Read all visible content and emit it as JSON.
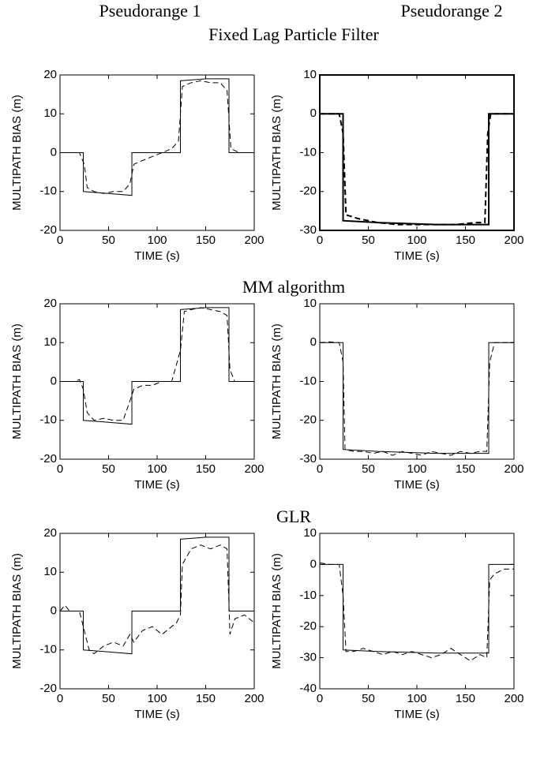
{
  "columns": [
    "Pseudorange 1",
    "Pseudorange 2"
  ],
  "rows": [
    {
      "title": "Fixed Lag Particle Filter"
    },
    {
      "title": "MM algorithm"
    },
    {
      "title": "GLR"
    }
  ],
  "chart_data": [
    {
      "type": "line",
      "xlabel": "TIME (s)",
      "ylabel": "MULTIPATH BIAS (m)",
      "xlim": [
        0,
        200
      ],
      "ylim": [
        -20,
        20
      ],
      "xticks": [
        0,
        50,
        100,
        150,
        200
      ],
      "yticks": [
        -20,
        -10,
        0,
        10,
        20
      ],
      "line_width": 1,
      "series": [
        {
          "color": "#000000",
          "dash": false,
          "x": [
            0,
            24,
            24,
            50,
            74,
            74,
            124,
            124,
            150,
            174,
            174,
            200
          ],
          "values": [
            0,
            0,
            -10,
            -10.5,
            -11,
            0,
            0,
            18.5,
            19,
            19,
            0,
            0
          ]
        },
        {
          "color": "#000000",
          "dash": true,
          "x": [
            0,
            20,
            25,
            28,
            35,
            45,
            55,
            65,
            72,
            76,
            85,
            95,
            105,
            115,
            122,
            126,
            135,
            145,
            155,
            165,
            172,
            176,
            185,
            195,
            200
          ],
          "values": [
            0,
            0,
            -3,
            -9,
            -10,
            -10.5,
            -10,
            -10,
            -8,
            -3,
            -2,
            -1,
            0,
            1,
            3,
            17,
            18,
            18.5,
            18,
            18,
            16,
            1,
            0,
            0,
            0
          ]
        }
      ]
    },
    {
      "type": "line",
      "xlabel": "TIME (s)",
      "ylabel": "MULTIPATH BIAS (m)",
      "xlim": [
        0,
        200
      ],
      "ylim": [
        -30,
        10
      ],
      "xticks": [
        0,
        50,
        100,
        150,
        200
      ],
      "yticks": [
        -30,
        -20,
        -10,
        0,
        10
      ],
      "line_width": 2,
      "series": [
        {
          "color": "#000000",
          "dash": false,
          "x": [
            0,
            24,
            24,
            60,
            120,
            174,
            174,
            200
          ],
          "values": [
            0,
            0,
            -27.5,
            -28,
            -28.5,
            -28.5,
            0,
            0
          ]
        },
        {
          "color": "#000000",
          "dash": true,
          "x": [
            0,
            20,
            24,
            27,
            40,
            60,
            80,
            100,
            120,
            140,
            160,
            170,
            173,
            176,
            200
          ],
          "values": [
            0,
            0,
            -5,
            -26,
            -27,
            -28,
            -28.5,
            -28.5,
            -28.5,
            -28.5,
            -28,
            -28,
            -5,
            0,
            0
          ]
        }
      ]
    },
    {
      "type": "line",
      "xlabel": "TIME (s)",
      "ylabel": "MULTIPATH BIAS (m)",
      "xlim": [
        0,
        200
      ],
      "ylim": [
        -20,
        20
      ],
      "xticks": [
        0,
        50,
        100,
        150,
        200
      ],
      "yticks": [
        -20,
        -10,
        0,
        10,
        20
      ],
      "line_width": 1,
      "series": [
        {
          "color": "#000000",
          "dash": false,
          "x": [
            0,
            24,
            24,
            50,
            74,
            74,
            124,
            124,
            150,
            174,
            174,
            200
          ],
          "values": [
            0,
            0,
            -10,
            -10.5,
            -11,
            0,
            0,
            18.5,
            19,
            19,
            0,
            0
          ]
        },
        {
          "color": "#000000",
          "dash": true,
          "x": [
            0,
            15,
            20,
            24,
            28,
            35,
            45,
            55,
            65,
            72,
            76,
            85,
            95,
            105,
            115,
            124,
            128,
            135,
            145,
            155,
            165,
            172,
            175,
            180,
            190,
            200
          ],
          "values": [
            0,
            0,
            0.5,
            -2,
            -8,
            -10,
            -9.5,
            -10,
            -10,
            -5,
            -2,
            -1,
            -1,
            0,
            0,
            8,
            18,
            18.5,
            19,
            18.5,
            18,
            17,
            3,
            0,
            0,
            0
          ]
        }
      ]
    },
    {
      "type": "line",
      "xlabel": "TIME (s)",
      "ylabel": "MULTIPATH BIAS (m)",
      "xlim": [
        0,
        200
      ],
      "ylim": [
        -30,
        10
      ],
      "xticks": [
        0,
        50,
        100,
        150,
        200
      ],
      "yticks": [
        -30,
        -20,
        -10,
        0,
        10
      ],
      "line_width": 1,
      "series": [
        {
          "color": "#000000",
          "dash": false,
          "x": [
            0,
            24,
            24,
            60,
            120,
            174,
            174,
            200
          ],
          "values": [
            0,
            0,
            -27.5,
            -28,
            -28.5,
            -28.5,
            0,
            0
          ]
        },
        {
          "color": "#000000",
          "dash": true,
          "x": [
            0,
            10,
            20,
            24,
            26,
            35,
            45,
            55,
            65,
            75,
            85,
            95,
            105,
            115,
            125,
            135,
            145,
            155,
            165,
            172,
            175,
            180,
            190,
            200
          ],
          "values": [
            0,
            0.2,
            0,
            -5,
            -27.5,
            -28,
            -28,
            -28.5,
            -28,
            -29,
            -28,
            -28.5,
            -29,
            -28,
            -28.5,
            -29,
            -28,
            -28.5,
            -28,
            -28,
            -5,
            0,
            0,
            0
          ]
        }
      ]
    },
    {
      "type": "line",
      "xlabel": "TIME (s)",
      "ylabel": "MULTIPATH BIAS (m)",
      "xlim": [
        0,
        200
      ],
      "ylim": [
        -20,
        20
      ],
      "xticks": [
        0,
        50,
        100,
        150,
        200
      ],
      "yticks": [
        -20,
        -10,
        0,
        10,
        20
      ],
      "line_width": 1,
      "series": [
        {
          "color": "#000000",
          "dash": false,
          "x": [
            0,
            24,
            24,
            50,
            74,
            74,
            124,
            124,
            150,
            174,
            174,
            200
          ],
          "values": [
            0,
            0,
            -10,
            -10.5,
            -11,
            0,
            0,
            18.5,
            19,
            19,
            0,
            0
          ]
        },
        {
          "color": "#000000",
          "dash": true,
          "x": [
            0,
            5,
            10,
            20,
            24,
            30,
            35,
            45,
            55,
            65,
            72,
            76,
            85,
            95,
            105,
            115,
            120,
            124,
            126,
            135,
            145,
            155,
            165,
            172,
            175,
            180,
            190,
            200
          ],
          "values": [
            0,
            1.5,
            0,
            0,
            -4,
            -10,
            -11,
            -9,
            -8,
            -9,
            -6,
            -8,
            -5,
            -4,
            -6,
            -4,
            -3,
            -1,
            12,
            16,
            17,
            16,
            17,
            16,
            -6,
            -2,
            -1,
            -3
          ]
        }
      ]
    },
    {
      "type": "line",
      "xlabel": "TIME (s)",
      "ylabel": "MULTIPATH BIAS (m)",
      "xlim": [
        0,
        200
      ],
      "ylim": [
        -40,
        10
      ],
      "xticks": [
        0,
        50,
        100,
        150,
        200
      ],
      "yticks": [
        -40,
        -30,
        -20,
        -10,
        0,
        10
      ],
      "line_width": 1,
      "series": [
        {
          "color": "#000000",
          "dash": false,
          "x": [
            0,
            24,
            24,
            60,
            120,
            174,
            174,
            200
          ],
          "values": [
            0,
            0,
            -27.5,
            -28,
            -28.5,
            -28.5,
            0,
            0
          ]
        },
        {
          "color": "#000000",
          "dash": true,
          "x": [
            0,
            10,
            20,
            24,
            27,
            35,
            45,
            55,
            65,
            75,
            85,
            95,
            105,
            115,
            125,
            135,
            145,
            155,
            165,
            172,
            175,
            180,
            190,
            200
          ],
          "values": [
            0.5,
            0,
            0,
            -10,
            -28,
            -28,
            -27,
            -28,
            -29,
            -28,
            -29,
            -28,
            -29,
            -30,
            -29,
            -27,
            -29,
            -31,
            -29,
            -30,
            -5,
            -3,
            -1.5,
            -1.5
          ]
        }
      ]
    }
  ]
}
